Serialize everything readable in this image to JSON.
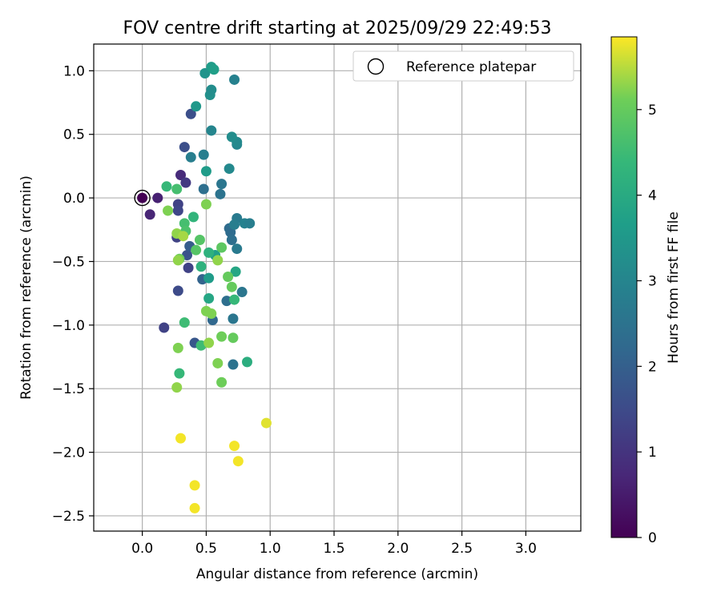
{
  "chart_data": {
    "type": "scatter",
    "title": "FOV centre drift starting at 2025/09/29 22:49:53",
    "xlabel": "Angular distance from reference (arcmin)",
    "ylabel": "Rotation from reference (arcmin)",
    "xlim": [
      -0.38,
      3.43
    ],
    "ylim": [
      -2.62,
      1.21
    ],
    "xticks": [
      0.0,
      0.5,
      1.0,
      1.5,
      2.0,
      2.5,
      3.0
    ],
    "xtick_labels": [
      "0.0",
      "0.5",
      "1.0",
      "1.5",
      "2.0",
      "2.5",
      "3.0"
    ],
    "yticks": [
      1.0,
      0.5,
      0.0,
      -0.5,
      -1.0,
      -1.5,
      -2.0,
      -2.5
    ],
    "ytick_labels": [
      "1.0",
      "0.5",
      "0.0",
      "−0.5",
      "−1.0",
      "−1.5",
      "−2.0",
      "−2.5"
    ],
    "grid": true,
    "legend": {
      "position": "top-right",
      "entries": [
        "Reference platepar"
      ]
    },
    "reference_point": {
      "x": 0.0,
      "y": 0.0,
      "label": "Reference platepar"
    },
    "colorbar": {
      "label": "Hours from first FF file",
      "colormap": "viridis",
      "range": [
        0,
        5.85
      ],
      "ticks": [
        0,
        1,
        2,
        3,
        4,
        5
      ],
      "tick_labels": [
        "0",
        "1",
        "2",
        "3",
        "4",
        "5"
      ]
    },
    "points": [
      {
        "x": 0.0,
        "y": 0.0,
        "c": 0.0
      },
      {
        "x": 0.12,
        "y": 0.0,
        "c": 0.6
      },
      {
        "x": 0.06,
        "y": -0.13,
        "c": 0.7
      },
      {
        "x": 0.3,
        "y": 0.18,
        "c": 0.8
      },
      {
        "x": 0.17,
        "y": -1.02,
        "c": 1.3
      },
      {
        "x": 0.34,
        "y": 0.12,
        "c": 1.1
      },
      {
        "x": 0.28,
        "y": -0.05,
        "c": 1.3
      },
      {
        "x": 0.28,
        "y": -0.1,
        "c": 1.4
      },
      {
        "x": 0.27,
        "y": -0.31,
        "c": 1.3
      },
      {
        "x": 0.36,
        "y": -0.55,
        "c": 1.3
      },
      {
        "x": 0.28,
        "y": -0.73,
        "c": 1.5
      },
      {
        "x": 0.33,
        "y": 0.4,
        "c": 1.6
      },
      {
        "x": 0.38,
        "y": 0.66,
        "c": 1.6
      },
      {
        "x": 0.41,
        "y": -1.14,
        "c": 1.8
      },
      {
        "x": 0.35,
        "y": -0.45,
        "c": 1.7
      },
      {
        "x": 0.37,
        "y": -0.38,
        "c": 1.9
      },
      {
        "x": 0.47,
        "y": -0.64,
        "c": 2.1
      },
      {
        "x": 0.55,
        "y": -0.96,
        "c": 2.2
      },
      {
        "x": 0.48,
        "y": 0.07,
        "c": 2.4
      },
      {
        "x": 0.61,
        "y": 0.03,
        "c": 2.5
      },
      {
        "x": 0.62,
        "y": 0.11,
        "c": 2.6
      },
      {
        "x": 0.66,
        "y": -0.81,
        "c": 2.4
      },
      {
        "x": 0.71,
        "y": -1.31,
        "c": 2.5
      },
      {
        "x": 0.71,
        "y": -0.95,
        "c": 2.6
      },
      {
        "x": 0.69,
        "y": -0.27,
        "c": 2.3
      },
      {
        "x": 0.68,
        "y": -0.24,
        "c": 2.3
      },
      {
        "x": 0.7,
        "y": -0.33,
        "c": 2.4
      },
      {
        "x": 0.74,
        "y": -0.16,
        "c": 2.7
      },
      {
        "x": 0.74,
        "y": -0.4,
        "c": 2.7
      },
      {
        "x": 0.78,
        "y": -0.74,
        "c": 2.6
      },
      {
        "x": 0.8,
        "y": -0.2,
        "c": 2.9
      },
      {
        "x": 0.84,
        "y": -0.2,
        "c": 2.8
      },
      {
        "x": 0.72,
        "y": -0.21,
        "c": 2.8
      },
      {
        "x": 0.38,
        "y": 0.32,
        "c": 2.8
      },
      {
        "x": 0.48,
        "y": 0.34,
        "c": 2.8
      },
      {
        "x": 0.54,
        "y": 0.53,
        "c": 3.0
      },
      {
        "x": 0.72,
        "y": 0.93,
        "c": 2.9
      },
      {
        "x": 0.74,
        "y": 0.42,
        "c": 3.0
      },
      {
        "x": 0.74,
        "y": 0.44,
        "c": 3.1
      },
      {
        "x": 0.7,
        "y": 0.48,
        "c": 3.2
      },
      {
        "x": 0.68,
        "y": 0.23,
        "c": 3.1
      },
      {
        "x": 0.53,
        "y": 0.81,
        "c": 3.3
      },
      {
        "x": 0.54,
        "y": 0.85,
        "c": 3.2
      },
      {
        "x": 0.42,
        "y": 0.72,
        "c": 3.5
      },
      {
        "x": 0.49,
        "y": 0.98,
        "c": 3.4
      },
      {
        "x": 0.54,
        "y": 1.03,
        "c": 3.6
      },
      {
        "x": 0.56,
        "y": 1.01,
        "c": 3.7
      },
      {
        "x": 0.5,
        "y": 0.21,
        "c": 3.6
      },
      {
        "x": 0.52,
        "y": -0.63,
        "c": 3.6
      },
      {
        "x": 0.52,
        "y": -0.79,
        "c": 3.9
      },
      {
        "x": 0.57,
        "y": -0.45,
        "c": 3.7
      },
      {
        "x": 0.73,
        "y": -0.58,
        "c": 3.9
      },
      {
        "x": 0.82,
        "y": -1.29,
        "c": 4.1
      },
      {
        "x": 0.52,
        "y": -0.43,
        "c": 4.2
      },
      {
        "x": 0.4,
        "y": -0.15,
        "c": 4.3
      },
      {
        "x": 0.46,
        "y": -0.54,
        "c": 4.2
      },
      {
        "x": 0.72,
        "y": -0.8,
        "c": 4.4
      },
      {
        "x": 0.33,
        "y": -0.98,
        "c": 4.5
      },
      {
        "x": 0.29,
        "y": -1.38,
        "c": 4.4
      },
      {
        "x": 0.19,
        "y": 0.09,
        "c": 4.4
      },
      {
        "x": 0.27,
        "y": 0.07,
        "c": 4.6
      },
      {
        "x": 0.33,
        "y": -0.2,
        "c": 4.6
      },
      {
        "x": 0.34,
        "y": -0.26,
        "c": 4.7
      },
      {
        "x": 0.46,
        "y": -1.16,
        "c": 4.5
      },
      {
        "x": 0.45,
        "y": -0.33,
        "c": 4.8
      },
      {
        "x": 0.42,
        "y": -0.41,
        "c": 4.8
      },
      {
        "x": 0.62,
        "y": -0.39,
        "c": 4.9
      },
      {
        "x": 0.67,
        "y": -0.62,
        "c": 5.0
      },
      {
        "x": 0.7,
        "y": -0.7,
        "c": 5.0
      },
      {
        "x": 0.71,
        "y": -1.1,
        "c": 5.0
      },
      {
        "x": 0.62,
        "y": -1.09,
        "c": 5.1
      },
      {
        "x": 0.62,
        "y": -1.45,
        "c": 5.1
      },
      {
        "x": 0.59,
        "y": -1.3,
        "c": 5.2
      },
      {
        "x": 0.54,
        "y": -0.91,
        "c": 5.2
      },
      {
        "x": 0.5,
        "y": -0.89,
        "c": 5.2
      },
      {
        "x": 0.52,
        "y": -1.14,
        "c": 5.3
      },
      {
        "x": 0.5,
        "y": -0.05,
        "c": 5.2
      },
      {
        "x": 0.59,
        "y": -0.49,
        "c": 5.3
      },
      {
        "x": 0.28,
        "y": -1.18,
        "c": 5.2
      },
      {
        "x": 0.27,
        "y": -1.49,
        "c": 5.3
      },
      {
        "x": 0.2,
        "y": -0.1,
        "c": 5.2
      },
      {
        "x": 0.27,
        "y": -0.28,
        "c": 5.3
      },
      {
        "x": 0.29,
        "y": -0.48,
        "c": 5.1
      },
      {
        "x": 0.28,
        "y": -0.49,
        "c": 5.3
      },
      {
        "x": 0.32,
        "y": -0.3,
        "c": 5.4
      },
      {
        "x": 0.3,
        "y": -1.89,
        "c": 5.8
      },
      {
        "x": 0.41,
        "y": -2.26,
        "c": 5.8
      },
      {
        "x": 0.41,
        "y": -2.44,
        "c": 5.8
      },
      {
        "x": 0.72,
        "y": -1.95,
        "c": 5.8
      },
      {
        "x": 0.75,
        "y": -2.07,
        "c": 5.8
      },
      {
        "x": 0.97,
        "y": -1.77,
        "c": 5.7
      }
    ]
  }
}
